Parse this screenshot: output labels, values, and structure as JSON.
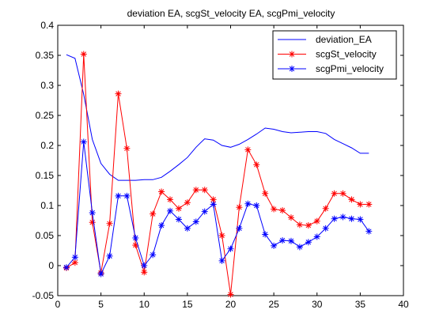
{
  "chart_data": {
    "type": "line",
    "title": "deviation EA, scgSt_velocity EA, scgPmi_velocity",
    "xlabel": "",
    "ylabel": "",
    "xlim": [
      0,
      40
    ],
    "ylim": [
      -0.05,
      0.4
    ],
    "x_ticks": [
      "0",
      "5",
      "10",
      "15",
      "20",
      "25",
      "30",
      "35",
      "40"
    ],
    "y_ticks": [
      "-0.05",
      "0",
      "0.05",
      "0.1",
      "0.15",
      "0.2",
      "0.25",
      "0.3",
      "0.35",
      "0.4"
    ],
    "grid": false,
    "legend_position": "top-right",
    "x": [
      1,
      2,
      3,
      4,
      5,
      6,
      7,
      8,
      9,
      10,
      11,
      12,
      13,
      14,
      15,
      16,
      17,
      18,
      19,
      20,
      21,
      22,
      23,
      24,
      25,
      26,
      27,
      28,
      29,
      30,
      31,
      32,
      33,
      34,
      35,
      36
    ],
    "series": [
      {
        "name": "deviation_EA",
        "color": "#0000ff",
        "marker": "none",
        "values": [
          0.351,
          0.345,
          0.285,
          0.21,
          0.17,
          0.152,
          0.142,
          0.142,
          0.142,
          0.143,
          0.143,
          0.147,
          0.157,
          0.168,
          0.18,
          0.197,
          0.211,
          0.209,
          0.2,
          0.197,
          0.202,
          0.21,
          0.219,
          0.229,
          0.227,
          0.223,
          0.221,
          0.222,
          0.223,
          0.223,
          0.22,
          0.21,
          0.203,
          0.196,
          0.187,
          0.187
        ]
      },
      {
        "name": "scgSt_velocity",
        "color": "#ff0000",
        "marker": "star",
        "values": [
          -0.004,
          0.005,
          0.352,
          0.072,
          -0.012,
          0.07,
          0.286,
          0.195,
          0.034,
          -0.011,
          0.086,
          0.123,
          0.11,
          0.095,
          0.105,
          0.126,
          0.126,
          0.11,
          0.05,
          -0.048,
          0.097,
          0.193,
          0.168,
          0.12,
          0.094,
          0.092,
          0.08,
          0.068,
          0.067,
          0.074,
          0.095,
          0.12,
          0.12,
          0.11,
          0.102,
          0.102
        ]
      },
      {
        "name": "scgPmi_velocity",
        "color": "#0000ff",
        "marker": "star",
        "values": [
          -0.003,
          0.014,
          0.206,
          0.088,
          -0.014,
          0.016,
          0.116,
          0.116,
          0.046,
          0.0,
          0.018,
          0.067,
          0.091,
          0.077,
          0.062,
          0.073,
          0.09,
          0.102,
          0.008,
          0.028,
          0.062,
          0.103,
          0.1,
          0.052,
          0.033,
          0.042,
          0.041,
          0.031,
          0.039,
          0.048,
          0.062,
          0.078,
          0.081,
          0.078,
          0.077,
          0.057
        ]
      }
    ]
  }
}
